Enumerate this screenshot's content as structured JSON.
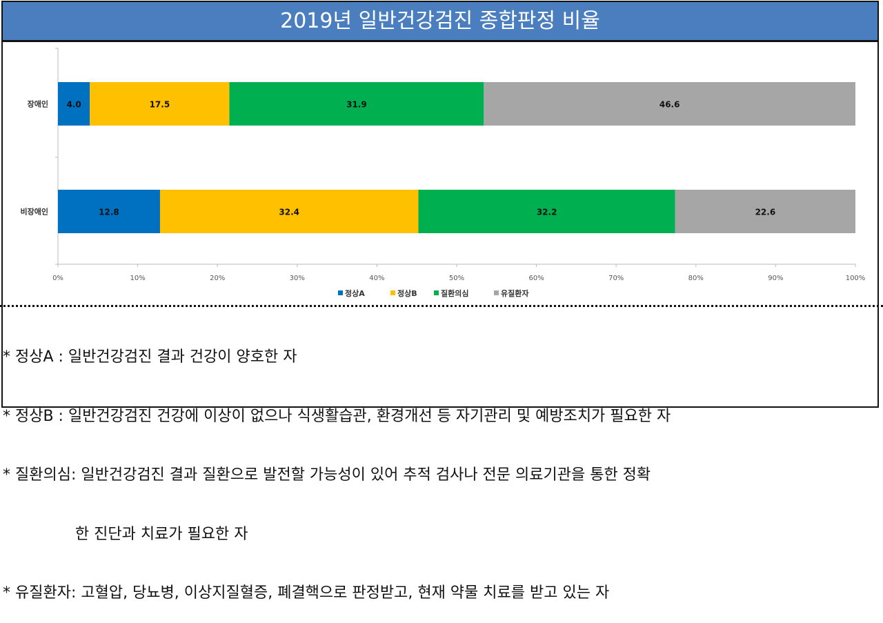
{
  "title": "2019년 일반건강검진 종합판정 비율",
  "chart_data": {
    "type": "bar",
    "orientation": "horizontal",
    "stacked": true,
    "percent_axis": true,
    "categories": [
      "장애인",
      "비장애인"
    ],
    "series": [
      {
        "name": "정상A",
        "color": "#0070c0",
        "values": [
          4.0,
          12.8
        ]
      },
      {
        "name": "정상B",
        "color": "#ffc000",
        "values": [
          17.5,
          32.4
        ]
      },
      {
        "name": "질환의심",
        "color": "#00b050",
        "values": [
          31.9,
          32.2
        ]
      },
      {
        "name": "유질환자",
        "color": "#a6a6a6",
        "values": [
          46.6,
          22.6
        ]
      }
    ],
    "xlim": [
      0,
      100
    ],
    "xticks": [
      "0%",
      "10%",
      "20%",
      "30%",
      "40%",
      "50%",
      "60%",
      "70%",
      "80%",
      "90%",
      "100%"
    ],
    "legend": "bottom",
    "grid": false
  },
  "notes": [
    "* 정상A : 일반건강검진 결과 건강이 양호한 자",
    "* 정상B : 일반건강검진 건강에 이상이 없으나 식생활습관, 환경개선 등 자기관리 및 예방조치가 필요한 자",
    "* 질환의심: 일반건강검진 결과 질환으로 발전할 가능성이 있어 추적 검사나 전문 의료기관을 통한 정확",
    "               한 진단과 치료가 필요한 자",
    "* 유질환자: 고혈압, 당뇨병, 이상지질혈증, 폐결핵으로 판정받고, 현재 약물 치료를 받고 있는 자"
  ]
}
